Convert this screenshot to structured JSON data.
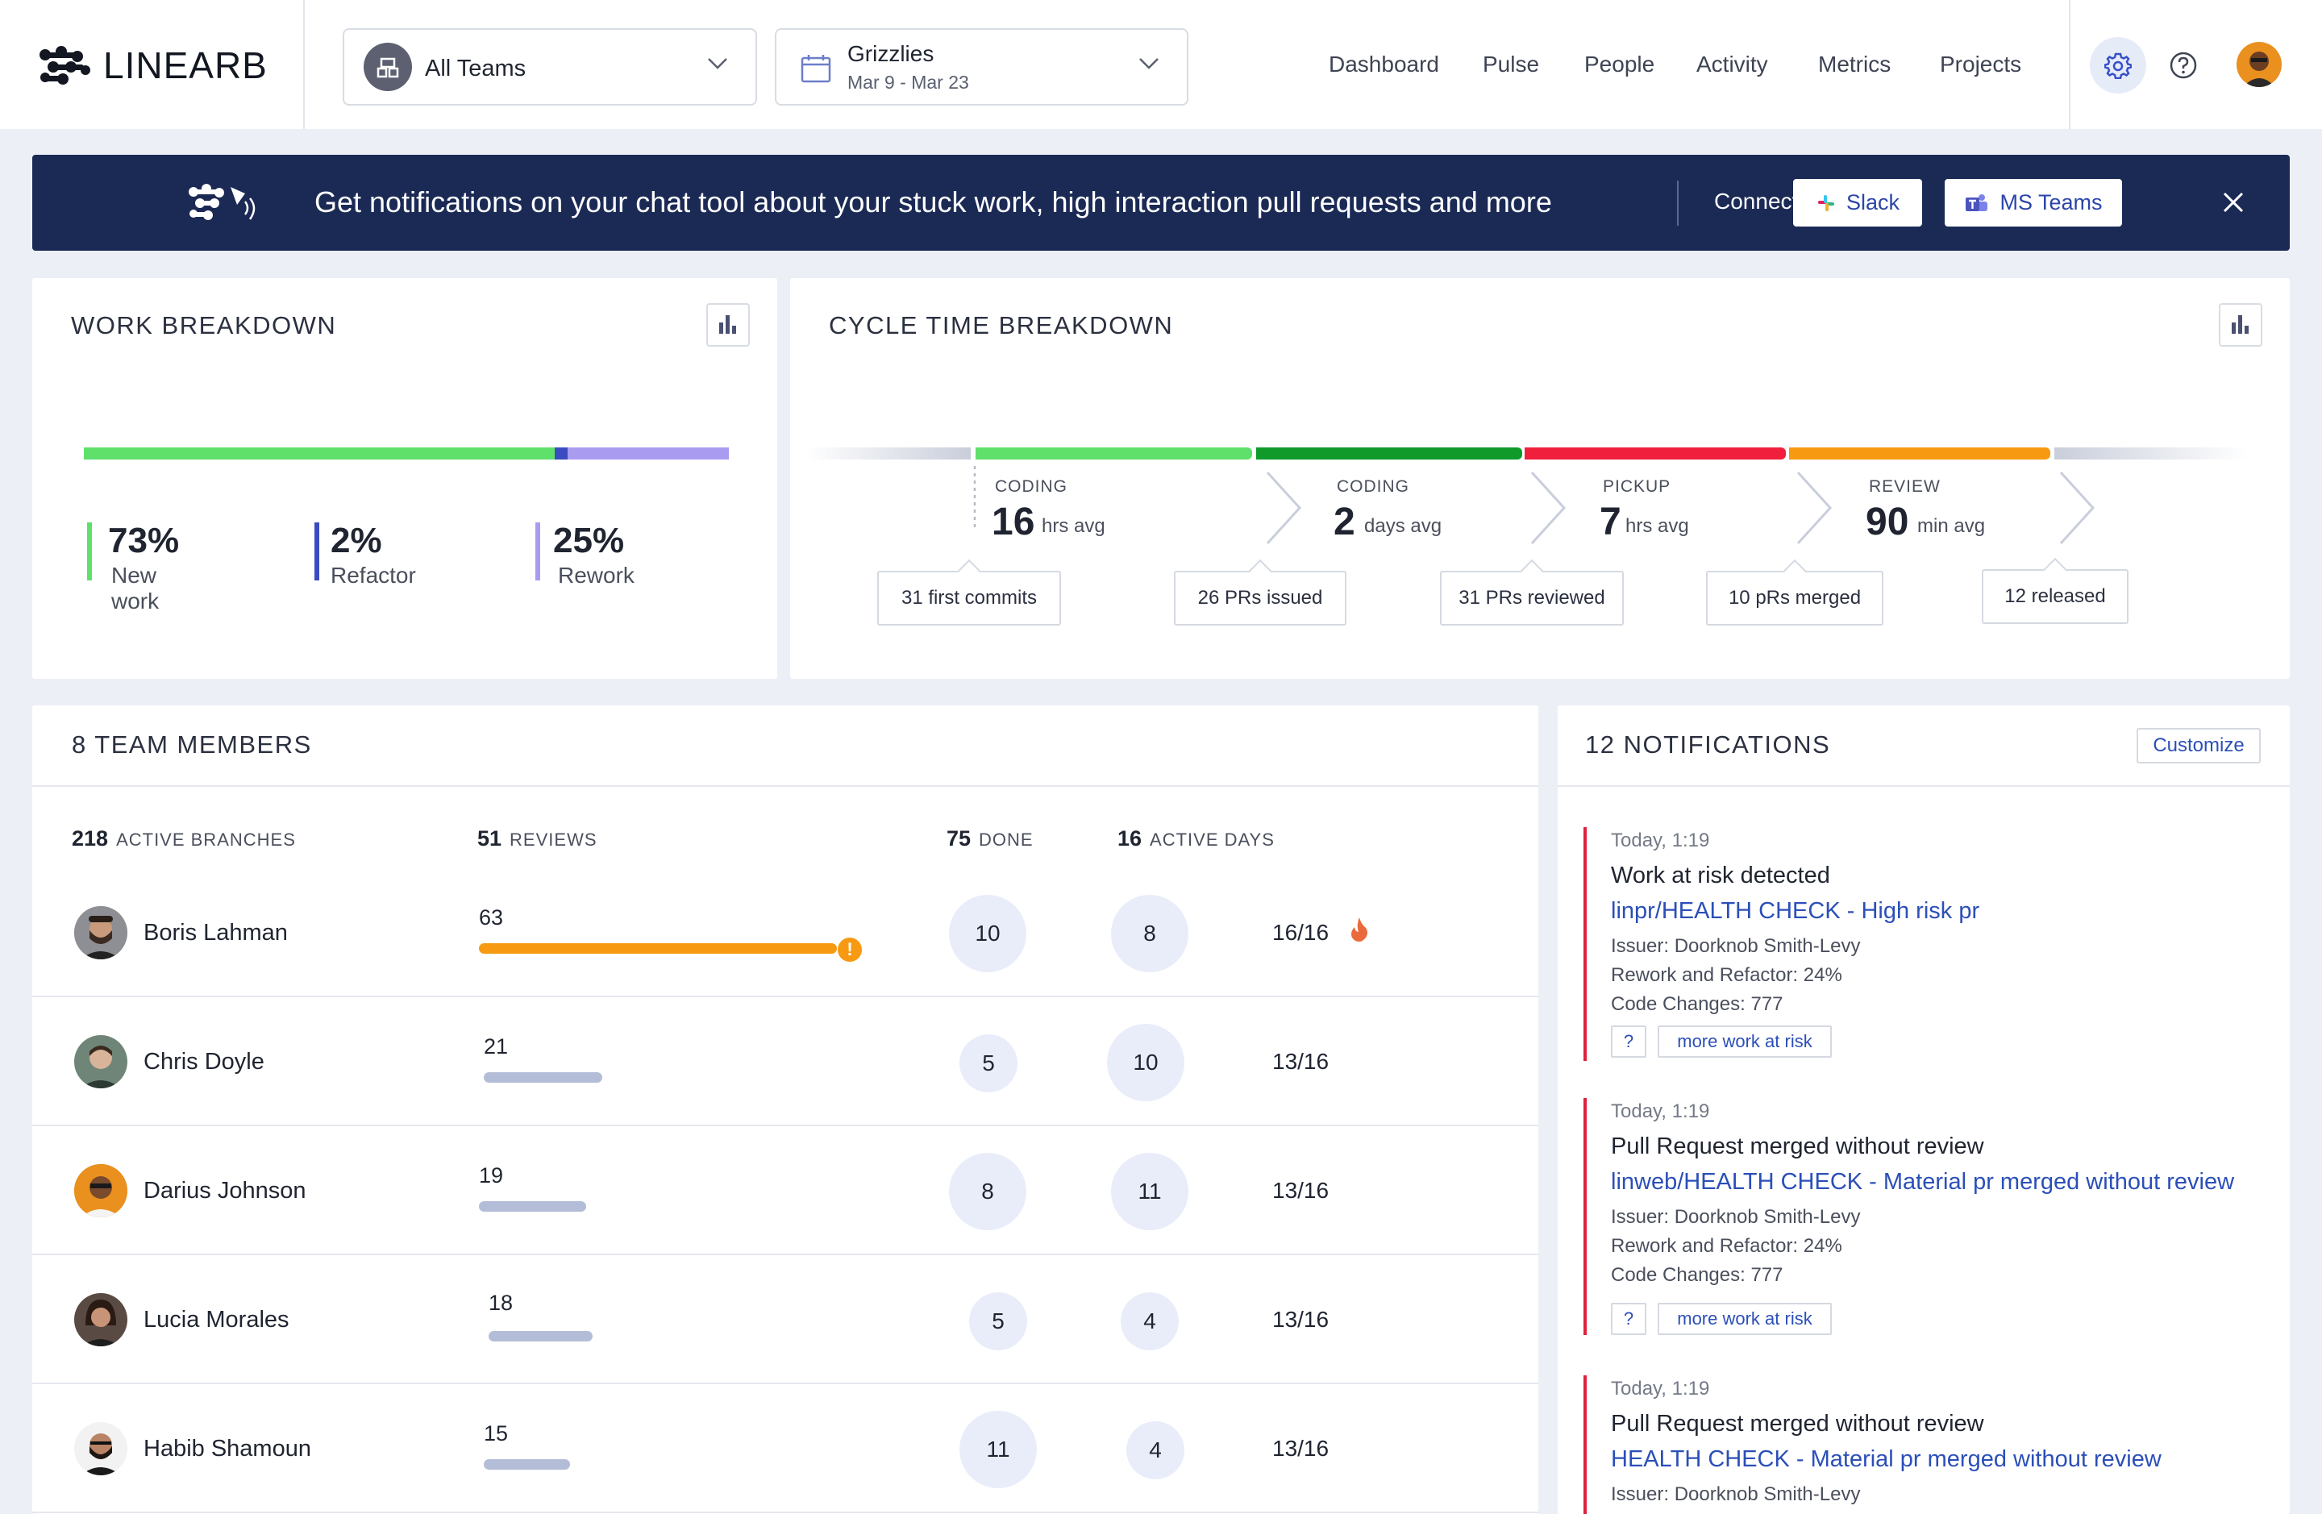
{
  "header": {
    "brand": "LINEARB",
    "team_select": {
      "label": "All Teams"
    },
    "date_select": {
      "title": "Grizzlies",
      "range": "Mar 9 - Mar 23"
    },
    "nav": [
      "Dashboard",
      "Pulse",
      "People",
      "Activity",
      "Metrics",
      "Projects"
    ],
    "icons": [
      "settings-icon",
      "help-icon",
      "user-avatar"
    ]
  },
  "banner": {
    "message": "Get notifications on your chat tool about your stuck work, high interaction pull requests and more",
    "connect_label": "Connect:",
    "slack_label": "Slack",
    "msteams_label": "MS Teams"
  },
  "work_breakdown": {
    "title": "WORK BREAKDOWN",
    "segments": [
      {
        "name": "New work",
        "percent": 73,
        "display": "73%",
        "color": "#5ee06a"
      },
      {
        "name": "Refactor",
        "percent": 2,
        "display": "2%",
        "color": "#3b4cc0"
      },
      {
        "name": "Rework",
        "percent": 25,
        "display": "25%",
        "color": "#a99cf0"
      }
    ]
  },
  "cycle_time": {
    "title": "CYCLE TIME BREAKDOWN",
    "stages": [
      {
        "label": "CODING",
        "value": "16",
        "unit": "hrs avg",
        "color": "#5ee06a"
      },
      {
        "label": "CODING",
        "value": "2",
        "unit": "days avg",
        "color": "#0f9a2a"
      },
      {
        "label": "PICKUP",
        "value": "7",
        "unit": "hrs avg",
        "color": "#f0203d"
      },
      {
        "label": "REVIEW",
        "value": "90",
        "unit": "min avg",
        "color": "#f79a12"
      }
    ],
    "events": [
      "31 first commits",
      "26 PRs issued",
      "31 PRs reviewed",
      "10 pRs merged",
      "12 released"
    ]
  },
  "team": {
    "title": "8 TEAM MEMBERS",
    "columns": [
      {
        "count": "218",
        "label": "ACTIVE BRANCHES"
      },
      {
        "count": "51",
        "label": "REVIEWS"
      },
      {
        "count": "75",
        "label": "DONE"
      },
      {
        "count": "16",
        "label": "ACTIVE DAYS"
      }
    ],
    "members": [
      {
        "name": "Boris Lahman",
        "reviews": "63",
        "review_level": 1.0,
        "done": "10",
        "active": "8",
        "days": "16/16"
      },
      {
        "name": "Chris Doyle",
        "reviews": "21",
        "review_level": 0.33,
        "done": "5",
        "active": "10",
        "days": "13/16"
      },
      {
        "name": "Darius Johnson",
        "reviews": "19",
        "review_level": 0.3,
        "done": "8",
        "active": "11",
        "days": "13/16"
      },
      {
        "name": "Lucia Morales",
        "reviews": "18",
        "review_level": 0.29,
        "done": "5",
        "active": "4",
        "days": "13/16"
      },
      {
        "name": "Habib Shamoun",
        "reviews": "15",
        "review_level": 0.24,
        "done": "11",
        "active": "4",
        "days": "13/16"
      }
    ]
  },
  "notifications": {
    "title": "12 NOTIFICATIONS",
    "customize_label": "Customize",
    "items": [
      {
        "time": "Today, 1:19",
        "title": "Work at risk detected",
        "link": "linpr/HEALTH CHECK - High risk pr",
        "issuer": "Issuer: Doorknob Smith-Levy",
        "rework": "Rework and Refactor: 24%",
        "changes": "Code Changes: 777",
        "tag_q": "?",
        "tag_more": "more work at risk"
      },
      {
        "time": "Today, 1:19",
        "title": "Pull Request merged without review",
        "link": "linweb/HEALTH CHECK - Material pr merged without review",
        "issuer": "Issuer: Doorknob Smith-Levy",
        "rework": "Rework and Refactor: 24%",
        "changes": "Code Changes: 777",
        "tag_q": "?",
        "tag_more": "more work at risk"
      },
      {
        "time": "Today, 1:19",
        "title": "Pull Request merged without review",
        "link": "HEALTH CHECK - Material pr merged without review",
        "issuer": "Issuer: Doorknob Smith-Levy"
      }
    ]
  }
}
